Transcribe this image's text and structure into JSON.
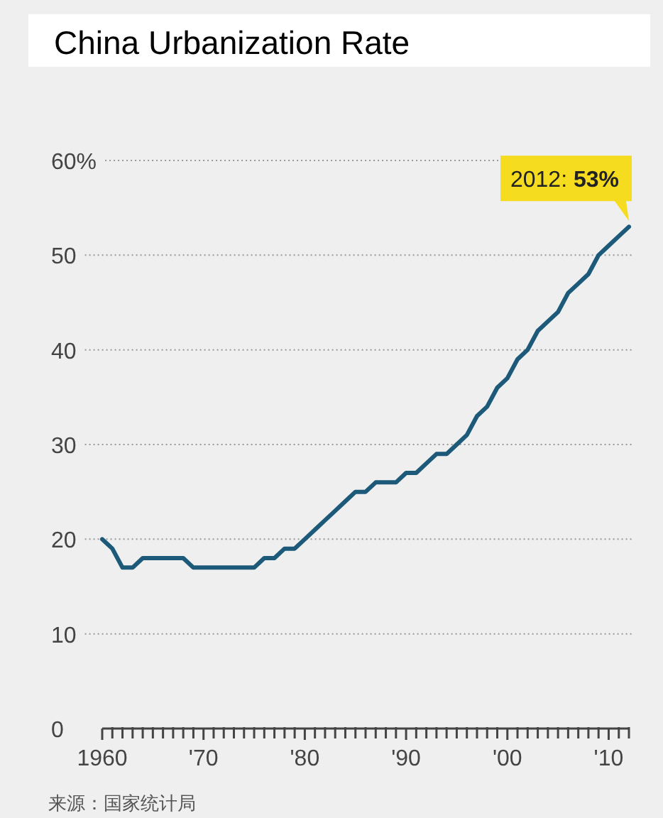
{
  "chart_data": {
    "type": "line",
    "title": "China Urbanization Rate",
    "x": [
      1960,
      1961,
      1962,
      1963,
      1964,
      1965,
      1966,
      1967,
      1968,
      1969,
      1970,
      1971,
      1972,
      1973,
      1974,
      1975,
      1976,
      1977,
      1978,
      1979,
      1980,
      1981,
      1982,
      1983,
      1984,
      1985,
      1986,
      1987,
      1988,
      1989,
      1990,
      1991,
      1992,
      1993,
      1994,
      1995,
      1996,
      1997,
      1998,
      1999,
      2000,
      2001,
      2002,
      2003,
      2004,
      2005,
      2006,
      2007,
      2008,
      2009,
      2010,
      2011,
      2012
    ],
    "series": [
      {
        "color": "#1d5a7a",
        "values": [
          20,
          19,
          17,
          17,
          18,
          18,
          18,
          18,
          18,
          17,
          17,
          17,
          17,
          17,
          17,
          17,
          18,
          18,
          19,
          19,
          20,
          21,
          22,
          23,
          24,
          25,
          25,
          26,
          26,
          26,
          27,
          27,
          28,
          29,
          29,
          30,
          31,
          33,
          34,
          36,
          37,
          39,
          40,
          42,
          43,
          44,
          46,
          47,
          48,
          50,
          51,
          52,
          53
        ]
      }
    ],
    "xlim": [
      1960,
      2012
    ],
    "xticks": [
      {
        "value": 1960,
        "label": "1960"
      },
      {
        "value": 1961,
        "label": null
      },
      {
        "value": 1962,
        "label": null
      },
      {
        "value": 1963,
        "label": null
      },
      {
        "value": 1964,
        "label": null
      },
      {
        "value": 1965,
        "label": null
      },
      {
        "value": 1966,
        "label": null
      },
      {
        "value": 1967,
        "label": null
      },
      {
        "value": 1968,
        "label": null
      },
      {
        "value": 1969,
        "label": null
      },
      {
        "value": 1970,
        "label": "'70"
      },
      {
        "value": 1971,
        "label": null
      },
      {
        "value": 1972,
        "label": null
      },
      {
        "value": 1973,
        "label": null
      },
      {
        "value": 1974,
        "label": null
      },
      {
        "value": 1975,
        "label": null
      },
      {
        "value": 1976,
        "label": null
      },
      {
        "value": 1977,
        "label": null
      },
      {
        "value": 1978,
        "label": null
      },
      {
        "value": 1979,
        "label": null
      },
      {
        "value": 1980,
        "label": "'80"
      },
      {
        "value": 1981,
        "label": null
      },
      {
        "value": 1982,
        "label": null
      },
      {
        "value": 1983,
        "label": null
      },
      {
        "value": 1984,
        "label": null
      },
      {
        "value": 1985,
        "label": null
      },
      {
        "value": 1986,
        "label": null
      },
      {
        "value": 1987,
        "label": null
      },
      {
        "value": 1988,
        "label": null
      },
      {
        "value": 1989,
        "label": null
      },
      {
        "value": 1990,
        "label": "'90"
      },
      {
        "value": 1991,
        "label": null
      },
      {
        "value": 1992,
        "label": null
      },
      {
        "value": 1993,
        "label": null
      },
      {
        "value": 1994,
        "label": null
      },
      {
        "value": 1995,
        "label": null
      },
      {
        "value": 1996,
        "label": null
      },
      {
        "value": 1997,
        "label": null
      },
      {
        "value": 1998,
        "label": null
      },
      {
        "value": 1999,
        "label": null
      },
      {
        "value": 2000,
        "label": "'00"
      },
      {
        "value": 2001,
        "label": null
      },
      {
        "value": 2002,
        "label": null
      },
      {
        "value": 2003,
        "label": null
      },
      {
        "value": 2004,
        "label": null
      },
      {
        "value": 2005,
        "label": null
      },
      {
        "value": 2006,
        "label": null
      },
      {
        "value": 2007,
        "label": null
      },
      {
        "value": 2008,
        "label": null
      },
      {
        "value": 2009,
        "label": null
      },
      {
        "value": 2010,
        "label": "'10"
      },
      {
        "value": 2011,
        "label": null
      },
      {
        "value": 2012,
        "label": null
      }
    ],
    "ylim": [
      0,
      60
    ],
    "yticks": [
      0,
      10,
      20,
      30,
      40,
      50,
      {
        "value": 60,
        "label": "60%"
      }
    ],
    "grid": "y",
    "annotations": [
      {
        "text": "2012: **53%**",
        "x": 2012,
        "y": 53
      },
      "来源：国家统计局"
    ]
  }
}
